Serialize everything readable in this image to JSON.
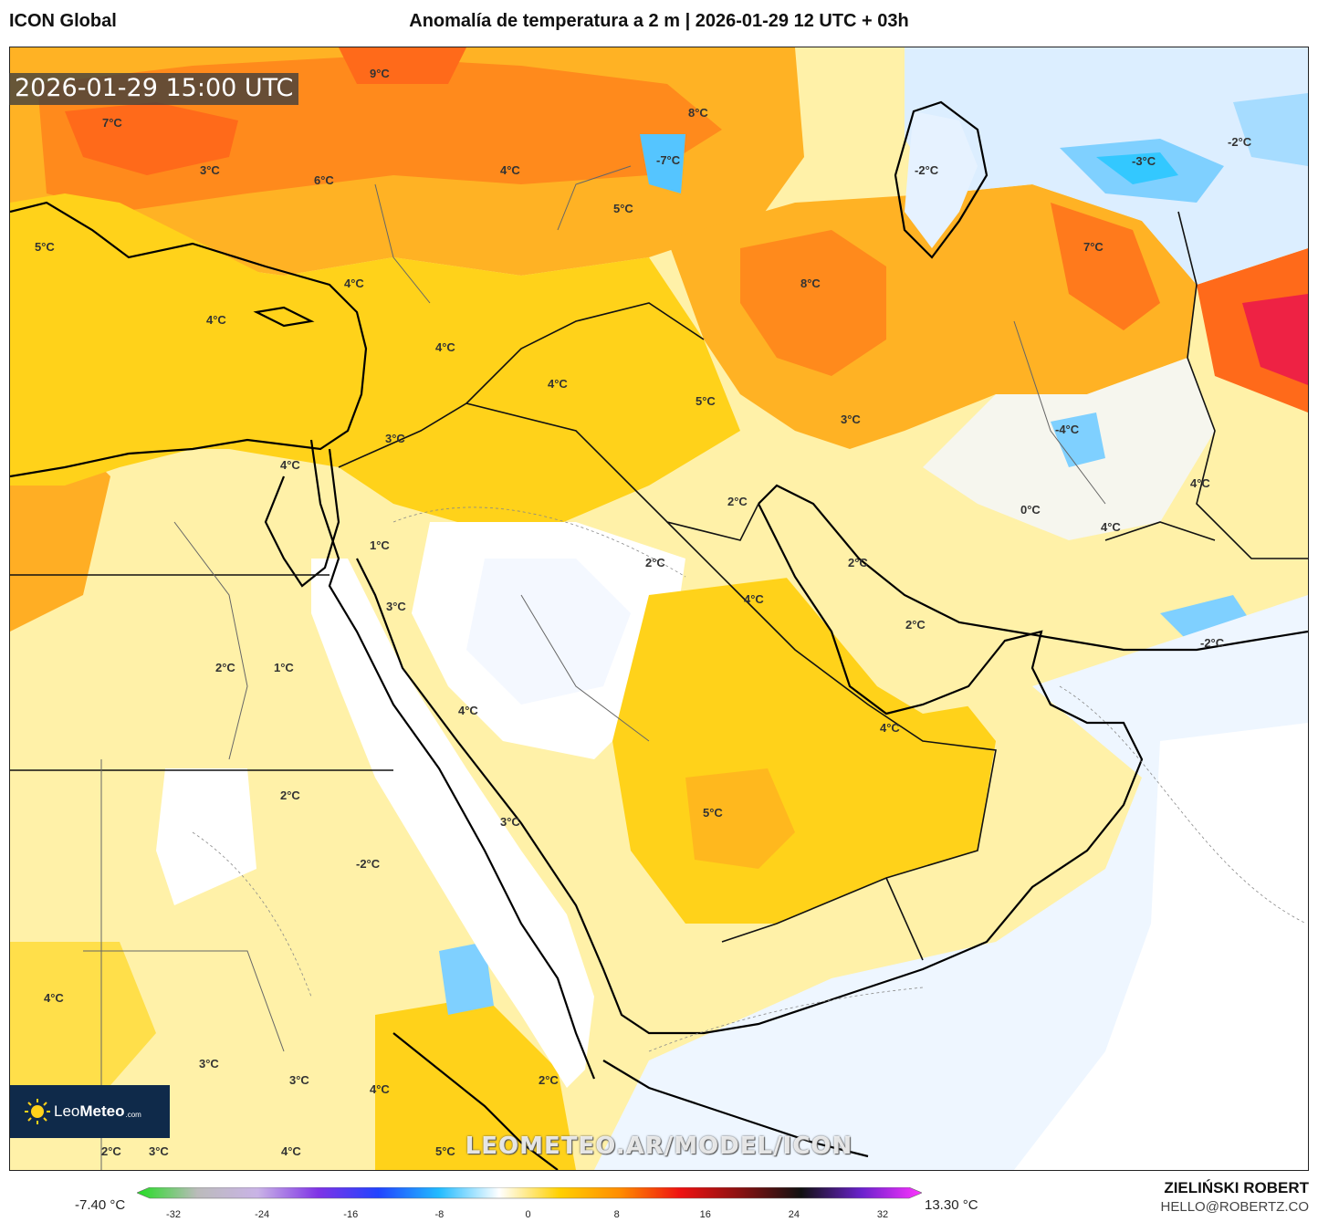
{
  "header": {
    "model": "ICON Global",
    "title": "Anomalía de temperatura a 2 m | 2026-01-29 12 UTC + 03h"
  },
  "map": {
    "timestamp": "2026-01-29 15:00 UTC",
    "watermark": "LEOMETEO.AR/MODEL/ICON",
    "labels": [
      {
        "text": "9°C"
      },
      {
        "text": "7°C"
      },
      {
        "text": "3°C"
      },
      {
        "text": "6°C"
      },
      {
        "text": "4°C"
      },
      {
        "text": "5°C"
      },
      {
        "text": "-7°C"
      },
      {
        "text": "8°C"
      },
      {
        "text": "-2°C"
      },
      {
        "text": "-3°C"
      },
      {
        "text": "-2°C"
      },
      {
        "text": "5°C"
      },
      {
        "text": "7°C"
      },
      {
        "text": "4°C"
      },
      {
        "text": "4°C"
      },
      {
        "text": "4°C"
      },
      {
        "text": "4°C"
      },
      {
        "text": "8°C"
      },
      {
        "text": "5°C"
      },
      {
        "text": "3°C"
      },
      {
        "text": "-4°C"
      },
      {
        "text": "3°C"
      },
      {
        "text": "4°C"
      },
      {
        "text": "4°C"
      },
      {
        "text": "2°C"
      },
      {
        "text": "0°C"
      },
      {
        "text": "1°C"
      },
      {
        "text": "2°C"
      },
      {
        "text": "2°C"
      },
      {
        "text": "4°C"
      },
      {
        "text": "4°C"
      },
      {
        "text": "3°C"
      },
      {
        "text": "2°C"
      },
      {
        "text": "2°C"
      },
      {
        "text": "1°C"
      },
      {
        "text": "-2°C"
      },
      {
        "text": "4°C"
      },
      {
        "text": "4°C"
      },
      {
        "text": "2°C"
      },
      {
        "text": "5°C"
      },
      {
        "text": "3°C"
      },
      {
        "text": "-2°C"
      },
      {
        "text": "4°C"
      },
      {
        "text": "3°C"
      },
      {
        "text": "3°C"
      },
      {
        "text": "4°C"
      },
      {
        "text": "2°C"
      },
      {
        "text": "2°C"
      },
      {
        "text": "3°C"
      },
      {
        "text": "4°C"
      },
      {
        "text": "5°C"
      }
    ]
  },
  "logo": {
    "brand_light": "Leo",
    "brand_bold": "Meteo",
    "suffix": ".com"
  },
  "colorbar": {
    "min_label": "-7.40 °C",
    "max_label": "13.30 °C",
    "ticks": [
      "-32",
      "-24",
      "-16",
      "-8",
      "0",
      "8",
      "16",
      "24",
      "32"
    ],
    "stops": [
      "#22dd22",
      "#bbbbbb",
      "#c9b3e6",
      "#7f33e6",
      "#2244ff",
      "#22bbff",
      "#ffffff",
      "#ffd000",
      "#ff8c00",
      "#ee1111",
      "#881111",
      "#111111",
      "#6a22cc",
      "#ff33ff"
    ]
  },
  "credits": {
    "author": "ZIELIŃSKI ROBERT",
    "email": "HELLO@ROBERTZ.CO"
  }
}
